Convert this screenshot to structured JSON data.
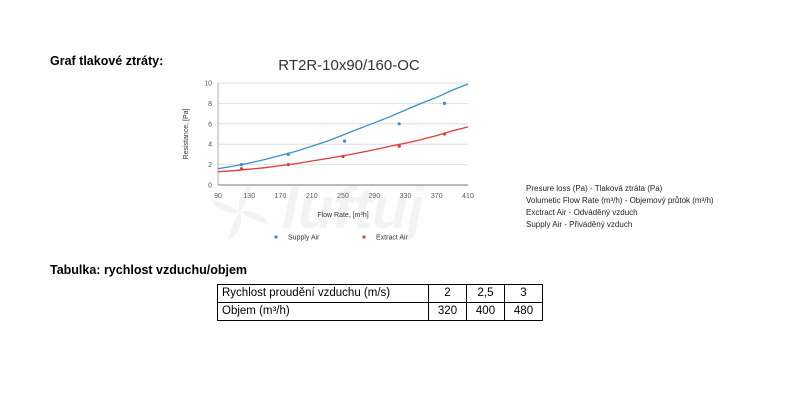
{
  "graph_heading": "Graf tlakové ztráty:",
  "table_heading": "Tabulka: rychlost vzduchu/objem",
  "notes": [
    "Presure loss (Pa) - Tlaková ztráta (Pa)",
    "Volumetic Flow Rate (m³/h) - Objemový průtok (m³/h)",
    "Exctract Air - Odváděný vzduch",
    "Supply Air - Přiváděný vzduch"
  ],
  "watermark": "luftuj",
  "table": {
    "rows": [
      {
        "label": "Rychlost proudění vzduchu (m/s)",
        "values": [
          "2",
          "2,5",
          "3"
        ]
      },
      {
        "label": "Objem (m³/h)",
        "values": [
          "320",
          "400",
          "480"
        ]
      }
    ]
  },
  "colors": {
    "supply": "#3d8fc6",
    "extract": "#e03a3a",
    "grid": "#d8d8d8"
  },
  "chart_data": {
    "type": "line",
    "title": "RT2R-10x90/160-OC",
    "xlabel": "Flow Rate, [m³h]",
    "ylabel": "Resistance, [Pa]",
    "xlim": [
      90,
      410
    ],
    "ylim": [
      0,
      10
    ],
    "x_ticks": [
      90,
      130,
      170,
      210,
      250,
      290,
      330,
      370,
      410
    ],
    "y_ticks": [
      0,
      2,
      4,
      6,
      8,
      10
    ],
    "grid": true,
    "legend_position": "bottom",
    "series": [
      {
        "name": "Supply Air",
        "color": "#3d8fc6",
        "line_x": [
          90,
          110,
          130,
          150,
          170,
          190,
          210,
          230,
          250,
          270,
          290,
          310,
          330,
          350,
          370,
          390,
          410
        ],
        "line_y": [
          1.6,
          1.85,
          2.15,
          2.5,
          2.9,
          3.3,
          3.8,
          4.3,
          4.9,
          5.5,
          6.1,
          6.7,
          7.35,
          8.0,
          8.6,
          9.3,
          9.9
        ],
        "markers_x": [
          120,
          180,
          252,
          322,
          380
        ],
        "markers_y": [
          2.0,
          3.0,
          4.3,
          6.0,
          8.0
        ]
      },
      {
        "name": "Extract Air",
        "color": "#e03a3a",
        "line_x": [
          90,
          110,
          130,
          150,
          170,
          190,
          210,
          230,
          250,
          270,
          290,
          310,
          330,
          350,
          370,
          390,
          410
        ],
        "line_y": [
          1.3,
          1.4,
          1.55,
          1.7,
          1.9,
          2.1,
          2.35,
          2.6,
          2.85,
          3.15,
          3.45,
          3.8,
          4.1,
          4.45,
          4.85,
          5.3,
          5.7
        ],
        "markers_x": [
          120,
          180,
          250,
          322,
          380
        ],
        "markers_y": [
          1.6,
          2.0,
          2.8,
          3.8,
          5.0
        ]
      }
    ]
  }
}
